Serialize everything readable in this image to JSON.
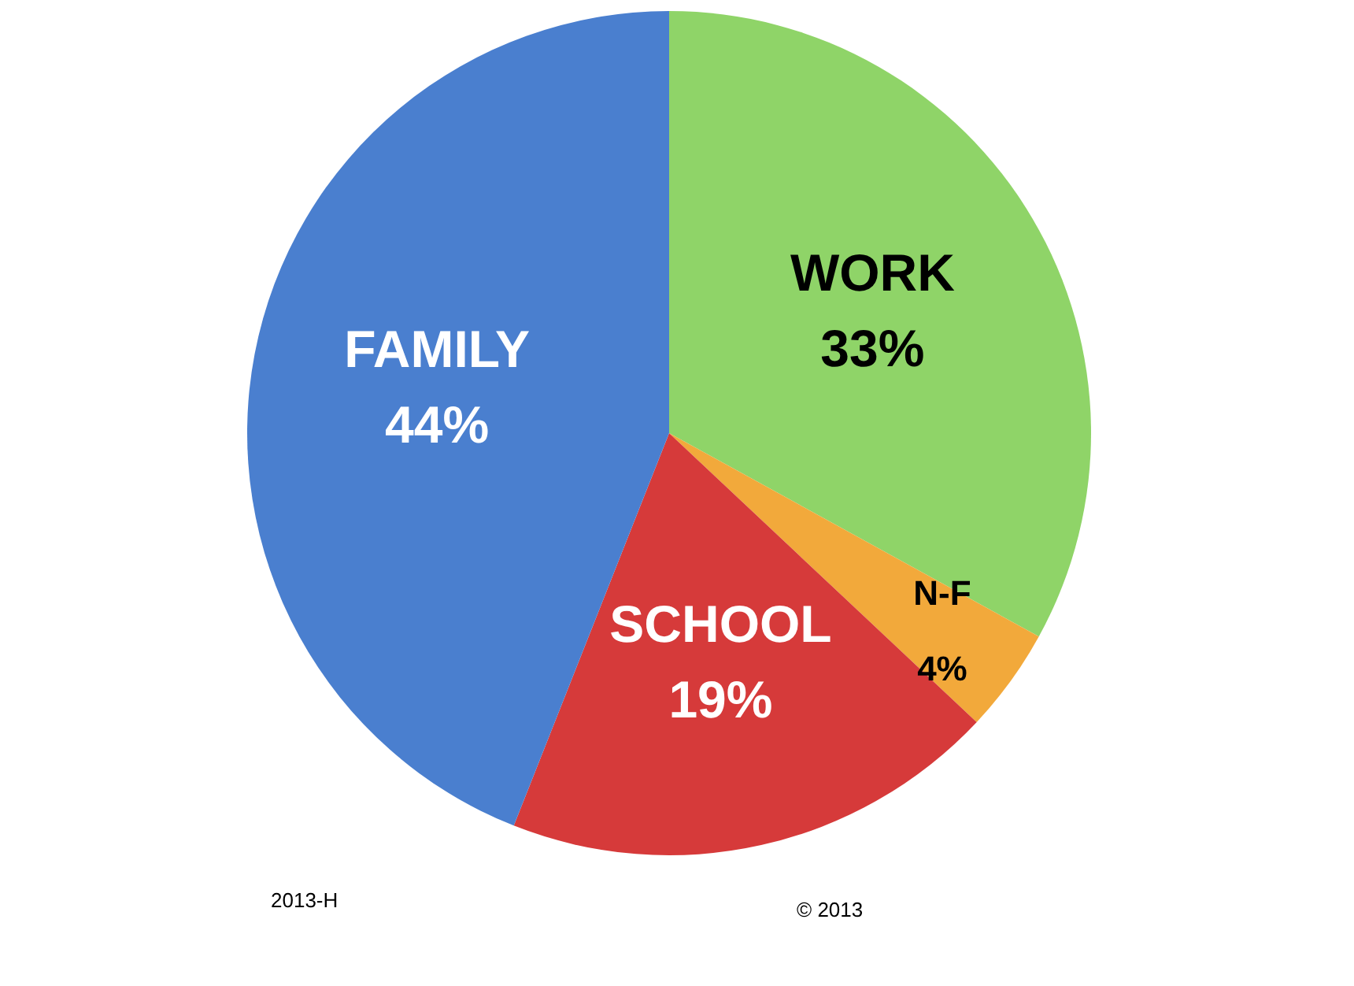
{
  "chart_data": {
    "type": "pie",
    "categories": [
      "WORK",
      "N-F",
      "SCHOOL",
      "FAMILY"
    ],
    "values": [
      33,
      4,
      19,
      44
    ],
    "colors": [
      "#8fd468",
      "#f2a93b",
      "#d63a3a",
      "#4a7fcf"
    ],
    "value_labels": [
      "33%",
      "4%",
      "19%",
      "44%"
    ],
    "annotations": [
      "2013-H",
      "© 2013"
    ]
  }
}
